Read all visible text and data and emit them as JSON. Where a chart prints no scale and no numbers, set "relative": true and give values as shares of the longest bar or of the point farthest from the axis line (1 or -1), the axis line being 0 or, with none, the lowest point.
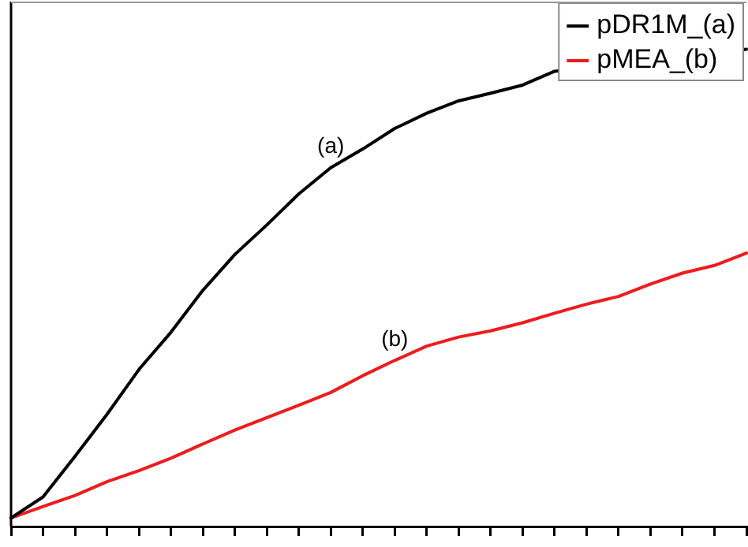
{
  "chart_data": {
    "type": "line",
    "relative": true,
    "categories": [
      null,
      null,
      null,
      null,
      null,
      null,
      null,
      null,
      null,
      null,
      null,
      null,
      null,
      null,
      null,
      null,
      null,
      null,
      null,
      null,
      null,
      null,
      null,
      null
    ],
    "series": [
      {
        "name": "pDR1M_(a)",
        "color": "#000000",
        "values": [
          0.018,
          0.062,
          0.147,
          0.235,
          0.329,
          0.407,
          0.495,
          0.57,
          0.632,
          0.697,
          0.752,
          0.791,
          0.834,
          0.866,
          0.892,
          0.908,
          0.925,
          0.954,
          null,
          null,
          null,
          null,
          null,
          1
        ]
      },
      {
        "name": "pMEA_(b)",
        "color": "#ee1c1c",
        "values": [
          0.018,
          0.042,
          0.065,
          0.094,
          0.117,
          0.143,
          0.173,
          0.202,
          0.228,
          0.254,
          0.281,
          0.316,
          0.348,
          0.378,
          0.397,
          0.41,
          0.427,
          0.447,
          0.466,
          0.482,
          0.508,
          0.531,
          0.547,
          0.573
        ]
      }
    ],
    "annotations": [
      "(a)",
      "(b)"
    ],
    "legend": "top right",
    "marker": "none",
    "line_style": "solid"
  }
}
